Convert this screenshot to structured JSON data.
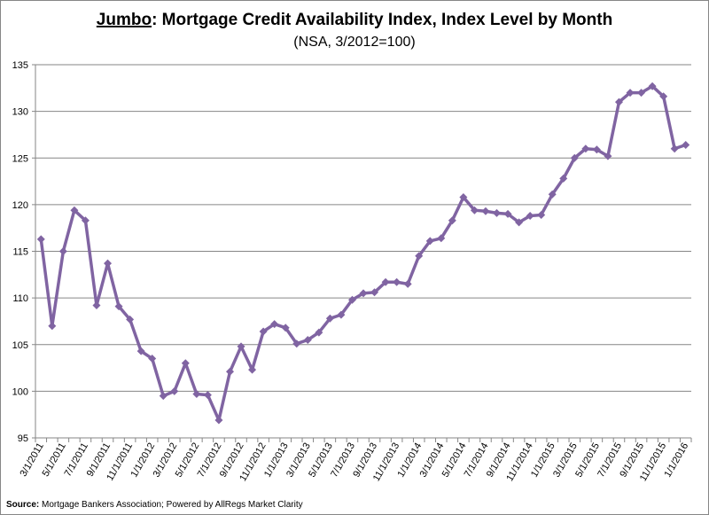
{
  "chart_data": {
    "type": "line",
    "title_highlight": "Jumbo",
    "title": ": Mortgage Credit Availability Index, Index Level by Month",
    "subtitle": "(NSA, 3/2012=100)",
    "source_label": "Source:",
    "source": "Mortgage Bankers Association; Powered by AllRegs Market Clarity",
    "categories": [
      "3/1/2011",
      null,
      "5/1/2011",
      null,
      "7/1/2011",
      null,
      "9/1/2011",
      null,
      "11/1/2011",
      null,
      "1/1/2012",
      null,
      "3/1/2012",
      null,
      "5/1/2012",
      null,
      "7/1/2012",
      null,
      "9/1/2012",
      null,
      "11/1/2012",
      null,
      "1/1/2013",
      null,
      "3/1/2013",
      null,
      "5/1/2013",
      null,
      "7/1/2013",
      null,
      "9/1/2013",
      null,
      "11/1/2013",
      null,
      "1/1/2014",
      null,
      "3/1/2014",
      null,
      "5/1/2014",
      null,
      "7/1/2014",
      null,
      "9/1/2014",
      null,
      "11/1/2014",
      null,
      "1/1/2015",
      null,
      "3/1/2015",
      null,
      "5/1/2015",
      null,
      "7/1/2015",
      null,
      "9/1/2015",
      null,
      "11/1/2015",
      null,
      "1/1/2016"
    ],
    "series": [
      {
        "name": "Jumbo",
        "color": "#8064a2",
        "values": [
          116.3,
          107.0,
          115.0,
          119.4,
          118.3,
          109.2,
          113.7,
          109.1,
          107.7,
          104.3,
          103.5,
          99.5,
          100.0,
          103.0,
          99.7,
          99.6,
          96.9,
          102.1,
          104.8,
          102.3,
          106.4,
          107.2,
          106.8,
          105.1,
          105.5,
          106.3,
          107.8,
          108.2,
          109.8,
          110.5,
          110.6,
          111.7,
          111.7,
          111.5,
          114.5,
          116.1,
          116.4,
          118.3,
          120.8,
          119.4,
          119.3,
          119.1,
          119.0,
          118.1,
          118.8,
          118.9,
          121.1,
          122.8,
          125.0,
          126.0,
          125.9,
          125.2,
          131.0,
          132.0,
          132.0,
          132.7,
          131.6,
          126.0,
          126.4
        ]
      }
    ],
    "ylim": [
      95,
      135
    ],
    "yticks": [
      95,
      100,
      105,
      110,
      115,
      120,
      125,
      130,
      135
    ],
    "grid": true
  }
}
